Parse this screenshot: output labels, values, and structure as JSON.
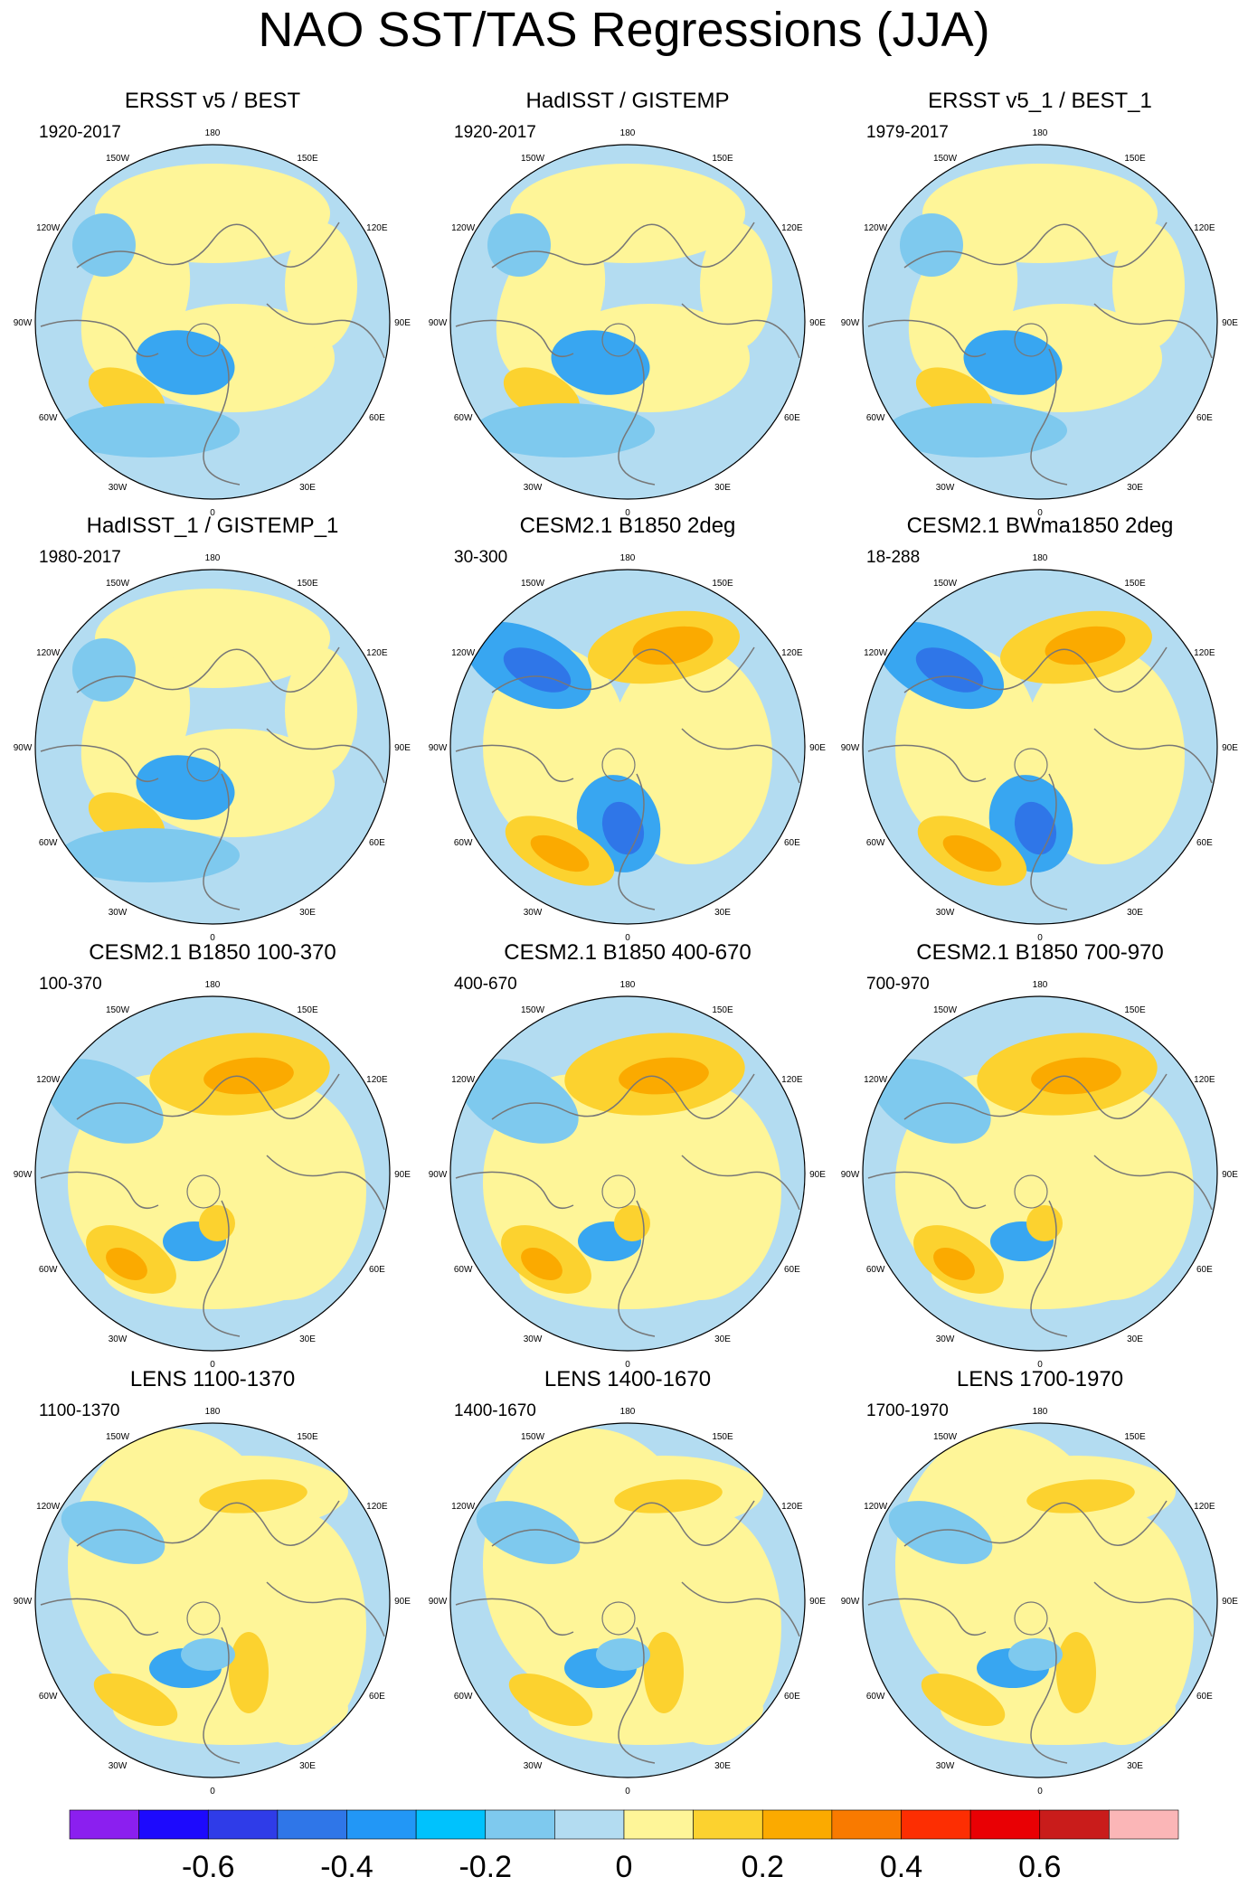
{
  "title": "NAO SST/TAS Regressions (JJA)",
  "palette": {
    "land": "#c7e3f2",
    "ocean_neutral": "#b3dcf1",
    "coast": "#777777",
    "pos1": "#fef598",
    "pos2": "#fcd22f",
    "pos3": "#fbaa00",
    "pos4": "#f97a00",
    "neg1": "#7ec9ee",
    "neg2": "#38a6f1",
    "neg3": "#2f76e8"
  },
  "lon_labels": [
    "180",
    "150E",
    "120E",
    "90E",
    "60E",
    "30E",
    "0",
    "30W",
    "60W",
    "90W",
    "120W",
    "150W"
  ],
  "panels": [
    {
      "title": "ERSST v5 / BEST",
      "period": "1920-2017",
      "pattern": "obs"
    },
    {
      "title": "HadISST / GISTEMP",
      "period": "1920-2017",
      "pattern": "obs"
    },
    {
      "title": "ERSST v5_1 / BEST_1",
      "period": "1979-2017",
      "pattern": "obs"
    },
    {
      "title": "HadISST_1 / GISTEMP_1",
      "period": "1980-2017",
      "pattern": "obs"
    },
    {
      "title": "CESM2.1 B1850 2deg",
      "period": "30-300",
      "pattern": "model_strong"
    },
    {
      "title": "CESM2.1 BWma1850 2deg",
      "period": "18-288",
      "pattern": "model_strong"
    },
    {
      "title": "CESM2.1 B1850 100-370",
      "period": "100-370",
      "pattern": "model"
    },
    {
      "title": "CESM2.1 B1850 400-670",
      "period": "400-670",
      "pattern": "model"
    },
    {
      "title": "CESM2.1 B1850 700-970",
      "period": "700-970",
      "pattern": "model"
    },
    {
      "title": "LENS 1100-1370",
      "period": "1100-1370",
      "pattern": "lens"
    },
    {
      "title": "LENS 1400-1670",
      "period": "1400-1670",
      "pattern": "lens"
    },
    {
      "title": "LENS 1700-1970",
      "period": "1700-1970",
      "pattern": "lens"
    }
  ],
  "chart_data": {
    "type": "heatmap",
    "title": "NAO SST/TAS Regressions (JJA)",
    "projection": "north polar stereographic",
    "colorbar": {
      "tick_labels": [
        "-0.6",
        "-0.4",
        "-0.2",
        "0",
        "0.2",
        "0.4",
        "0.6"
      ],
      "tick_values": [
        -0.6,
        -0.4,
        -0.2,
        0,
        0.2,
        0.4,
        0.6
      ],
      "colors": [
        "#8b1fef",
        "#1d0afd",
        "#2f3ce8",
        "#2f76e8",
        "#2297f6",
        "#00c2fd",
        "#7ec9ee",
        "#b3dcf1",
        "#fef598",
        "#fcd22f",
        "#fbaa00",
        "#f97a00",
        "#fd2e02",
        "#e90004",
        "#c91c1b",
        "#fbb6b7"
      ]
    }
  }
}
